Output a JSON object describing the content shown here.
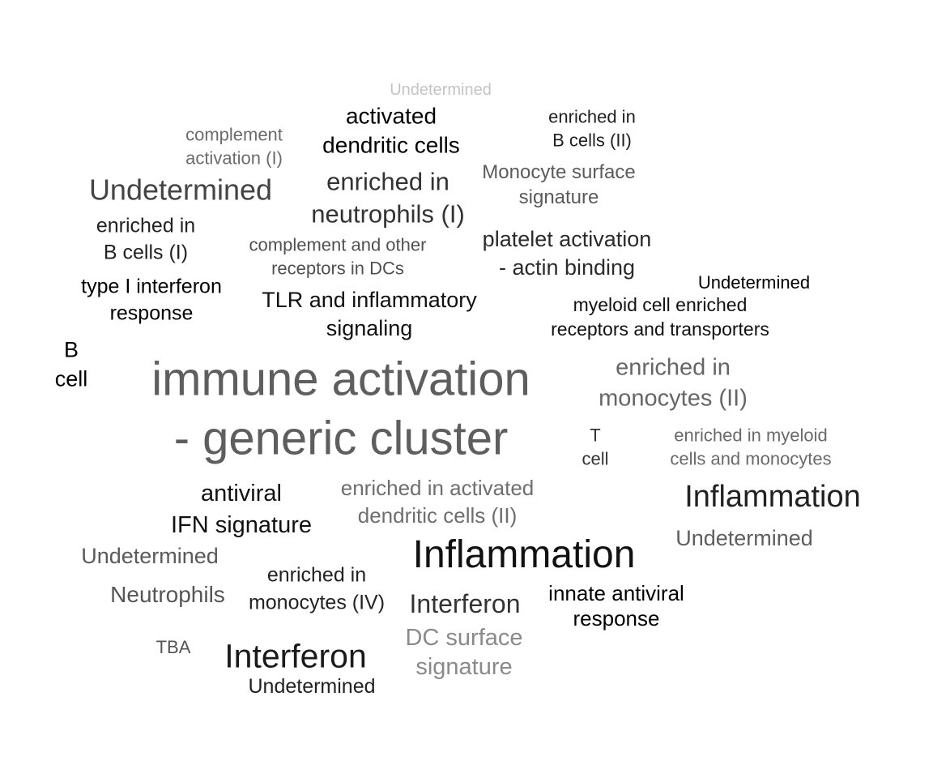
{
  "words": [
    {
      "text": "Undetermined",
      "color": "#c4c4c4"
    },
    {
      "text": "activated\ndendritic cells",
      "color": "#000000"
    },
    {
      "text": "enriched in\nB cells (II)",
      "color": "#1f1f1f"
    },
    {
      "text": "complement\nactivation (I)",
      "color": "#6b6b6b"
    },
    {
      "text": "Undetermined",
      "color": "#444444"
    },
    {
      "text": "enriched in\nneutrophils (I)",
      "color": "#333333"
    },
    {
      "text": "Monocyte surface\nsignature",
      "color": "#5a5a5a"
    },
    {
      "text": "enriched in\nB cells (I)",
      "color": "#222222"
    },
    {
      "text": "complement and other\nreceptors in DCs",
      "color": "#505050"
    },
    {
      "text": "platelet activation\n- actin binding",
      "color": "#2b2b2b"
    },
    {
      "text": "type I interferon\nresponse",
      "color": "#000000"
    },
    {
      "text": "TLR and inflammatory\nsignaling",
      "color": "#111111"
    },
    {
      "text": "Undetermined",
      "color": "#000000"
    },
    {
      "text": "myeloid cell enriched\nreceptors and transporters",
      "color": "#111111"
    },
    {
      "text": "B\ncell",
      "color": "#000000"
    },
    {
      "text": "immune activation\n- generic cluster",
      "color": "#5e5e5e"
    },
    {
      "text": "enriched in\nmonocytes (II)",
      "color": "#666666"
    },
    {
      "text": "T\ncell",
      "color": "#333333"
    },
    {
      "text": "enriched in myeloid\ncells and monocytes",
      "color": "#6a6a6a"
    },
    {
      "text": "Inflammation",
      "color": "#222222"
    },
    {
      "text": "antiviral\nIFN signature",
      "color": "#111111"
    },
    {
      "text": "enriched in activated\ndendritic cells (II)",
      "color": "#6e6e6e"
    },
    {
      "text": "Undetermined",
      "color": "#5e5e5e"
    },
    {
      "text": "Undetermined",
      "color": "#5a5a5a"
    },
    {
      "text": "Inflammation",
      "color": "#111111"
    },
    {
      "text": "Neutrophils",
      "color": "#555555"
    },
    {
      "text": "enriched in\nmonocytes (IV)",
      "color": "#222222"
    },
    {
      "text": "Interferon",
      "color": "#333333"
    },
    {
      "text": "innate antiviral\nresponse",
      "color": "#000000"
    },
    {
      "text": "TBA",
      "color": "#555555"
    },
    {
      "text": "Interferon",
      "color": "#1a1a1a"
    },
    {
      "text": "DC surface\nsignature",
      "color": "#8a8a8a"
    },
    {
      "text": "Undetermined",
      "color": "#222222"
    }
  ]
}
